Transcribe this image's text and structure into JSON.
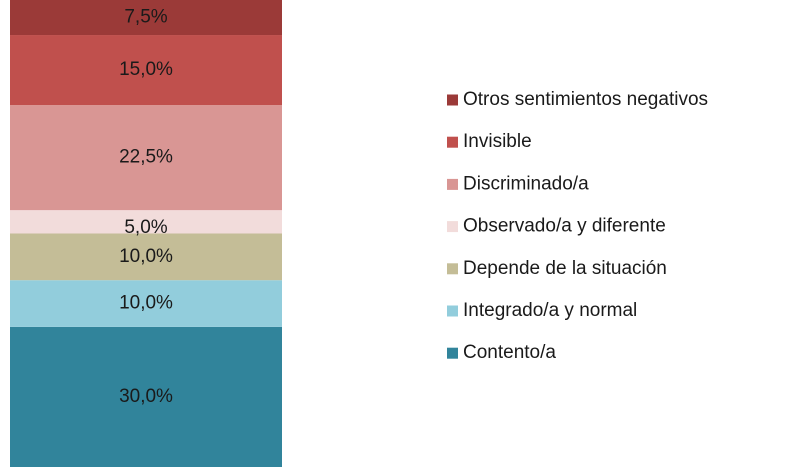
{
  "chart_data": {
    "type": "bar",
    "stacked": true,
    "ylim": [
      0,
      100
    ],
    "series": [
      {
        "name": "Contento/a",
        "color": "#31849b",
        "values": [
          30
        ],
        "value_labels": [
          "30,0%"
        ]
      },
      {
        "name": "Integrado/a y normal",
        "color": "#92cddc",
        "values": [
          10
        ],
        "value_labels": [
          "10,0%"
        ]
      },
      {
        "name": "Depende de la situación",
        "color": "#c4bd97",
        "values": [
          10
        ],
        "value_labels": [
          "10,0%"
        ]
      },
      {
        "name": "Observado/a y diferente",
        "color": "#f2dcdb",
        "values": [
          5
        ],
        "value_labels": [
          "5,0%"
        ]
      },
      {
        "name": "Discriminado/a",
        "color": "#d99694",
        "values": [
          22.5
        ],
        "value_labels": [
          "22,5%"
        ]
      },
      {
        "name": "Invisible",
        "color": "#c0504d",
        "values": [
          15
        ],
        "value_labels": [
          "15,0%"
        ]
      },
      {
        "name": "Otros sentimientos negativos",
        "color": "#9b3a38",
        "values": [
          7.5
        ],
        "value_labels": [
          "7,5%"
        ]
      }
    ],
    "legend": "right"
  }
}
